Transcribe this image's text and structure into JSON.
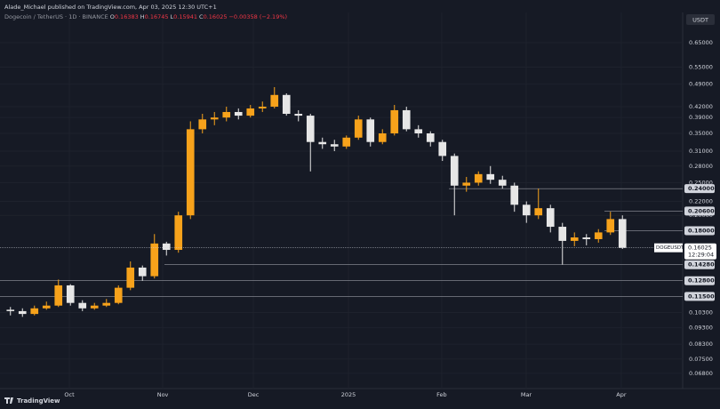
{
  "header": {
    "publisher": "Alade_Michael published on TradingView.com, Apr 03, 2025 12:30 UTC+1",
    "symbol": "Dogecoin / TetherUS · 1D · BINANCE",
    "ohlc_letters": [
      "O",
      "H",
      "L",
      "C"
    ],
    "ohlc": [
      0.16383,
      0.16745,
      0.15941,
      0.16025
    ],
    "change": "−0.00358 (−2.19%)",
    "currency": "USDT"
  },
  "footer": {
    "brand": "TradingView"
  },
  "chart_data": {
    "type": "candlestick",
    "log_scale": true,
    "up_color": "#f7a21b",
    "down_color": "#e6e6e6",
    "categories": [
      null,
      null,
      null,
      null,
      null,
      null,
      null,
      null,
      null,
      null,
      null,
      null,
      null,
      null,
      null,
      null,
      null,
      null,
      null,
      null,
      null,
      null,
      null,
      null,
      null,
      null,
      null,
      null,
      null,
      null,
      null,
      null,
      null,
      null,
      null,
      null,
      null,
      null,
      null,
      null,
      null,
      null,
      null,
      null,
      null,
      null,
      null,
      null,
      null,
      null,
      null,
      null
    ],
    "open": [
      0.105,
      0.104,
      0.102,
      0.106,
      0.108,
      0.124,
      0.11,
      0.106,
      0.108,
      0.11,
      0.122,
      0.14,
      0.132,
      0.165,
      0.158,
      0.2,
      0.36,
      0.385,
      0.39,
      0.405,
      0.395,
      0.415,
      0.42,
      0.455,
      0.4,
      0.395,
      0.33,
      0.325,
      0.32,
      0.34,
      0.385,
      0.33,
      0.35,
      0.41,
      0.36,
      0.35,
      0.33,
      0.3,
      0.245,
      0.25,
      0.265,
      0.255,
      0.245,
      0.215,
      0.2,
      0.21,
      0.185,
      0.168,
      0.172,
      0.17,
      0.178,
      0.195
    ],
    "high": [
      0.107,
      0.106,
      0.108,
      0.111,
      0.129,
      0.125,
      0.112,
      0.11,
      0.113,
      0.124,
      0.146,
      0.142,
      0.176,
      0.167,
      0.205,
      0.38,
      0.4,
      0.405,
      0.42,
      0.415,
      0.425,
      0.435,
      0.48,
      0.46,
      0.41,
      0.4,
      0.34,
      0.335,
      0.345,
      0.395,
      0.39,
      0.36,
      0.425,
      0.42,
      0.37,
      0.355,
      0.335,
      0.305,
      0.26,
      0.27,
      0.28,
      0.262,
      0.25,
      0.22,
      0.24,
      0.215,
      0.19,
      0.178,
      0.176,
      0.182,
      0.205,
      0.2
    ],
    "low": [
      0.101,
      0.1,
      0.101,
      0.105,
      0.107,
      0.108,
      0.104,
      0.105,
      0.107,
      0.109,
      0.12,
      0.128,
      0.13,
      0.152,
      0.155,
      0.195,
      0.35,
      0.37,
      0.38,
      0.385,
      0.39,
      0.405,
      0.415,
      0.395,
      0.38,
      0.27,
      0.315,
      0.31,
      0.315,
      0.335,
      0.32,
      0.325,
      0.345,
      0.355,
      0.34,
      0.32,
      0.29,
      0.2,
      0.235,
      0.245,
      0.248,
      0.24,
      0.205,
      0.19,
      0.195,
      0.178,
      0.143,
      0.162,
      0.163,
      0.166,
      0.175,
      0.159
    ],
    "close": [
      0.104,
      0.102,
      0.106,
      0.108,
      0.124,
      0.11,
      0.106,
      0.108,
      0.11,
      0.122,
      0.14,
      0.132,
      0.165,
      0.158,
      0.2,
      0.36,
      0.385,
      0.39,
      0.405,
      0.395,
      0.415,
      0.42,
      0.455,
      0.4,
      0.395,
      0.33,
      0.325,
      0.32,
      0.34,
      0.385,
      0.33,
      0.35,
      0.41,
      0.36,
      0.35,
      0.33,
      0.3,
      0.245,
      0.25,
      0.265,
      0.255,
      0.245,
      0.215,
      0.2,
      0.21,
      0.185,
      0.168,
      0.172,
      0.17,
      0.178,
      0.195,
      0.16025
    ],
    "xticks": [
      {
        "value": 4.91,
        "label": "Oct"
      },
      {
        "value": 12.69,
        "label": "Nov"
      },
      {
        "value": 20.24,
        "label": "Dec"
      },
      {
        "value": 28.17,
        "label": "2025"
      },
      {
        "value": 35.94,
        "label": "Feb"
      },
      {
        "value": 42.98,
        "label": "Mar"
      },
      {
        "value": 50.9,
        "label": "Apr"
      }
    ],
    "ylim": [
      0.0613,
      0.78
    ],
    "yticks": [
      {
        "value": 0.65,
        "label": "0.65000"
      },
      {
        "value": 0.55,
        "label": "0.55000"
      },
      {
        "value": 0.49,
        "label": "0.49000"
      },
      {
        "value": 0.42,
        "label": "0.42000"
      },
      {
        "value": 0.39,
        "label": "0.39000"
      },
      {
        "value": 0.35,
        "label": "0.35000"
      },
      {
        "value": 0.31,
        "label": "0.31000"
      },
      {
        "value": 0.28,
        "label": "0.28000"
      },
      {
        "value": 0.25,
        "label": "0.25000"
      },
      {
        "value": 0.22,
        "label": "0.22000"
      },
      {
        "value": 0.2,
        "label": "0.20000"
      },
      {
        "value": 0.103,
        "label": "0.10300"
      },
      {
        "value": 0.093,
        "label": "0.09300"
      },
      {
        "value": 0.083,
        "label": "0.08300"
      },
      {
        "value": 0.075,
        "label": "0.07500"
      },
      {
        "value": 0.068,
        "label": "0.06800"
      }
    ],
    "levels": [
      {
        "value": 0.24,
        "label": "0.24000"
      },
      {
        "value": 0.206,
        "label": "0.20600"
      },
      {
        "value": 0.18,
        "label": "0.18000"
      },
      {
        "value": 0.1428,
        "label": "0.14280"
      },
      {
        "value": 0.128,
        "label": "0.12800"
      },
      {
        "value": 0.115,
        "label": "0.11500"
      }
    ],
    "last_price": {
      "symbol": "DOGEUSDT",
      "value": 0.16025,
      "countdown": "12:29:04"
    }
  }
}
